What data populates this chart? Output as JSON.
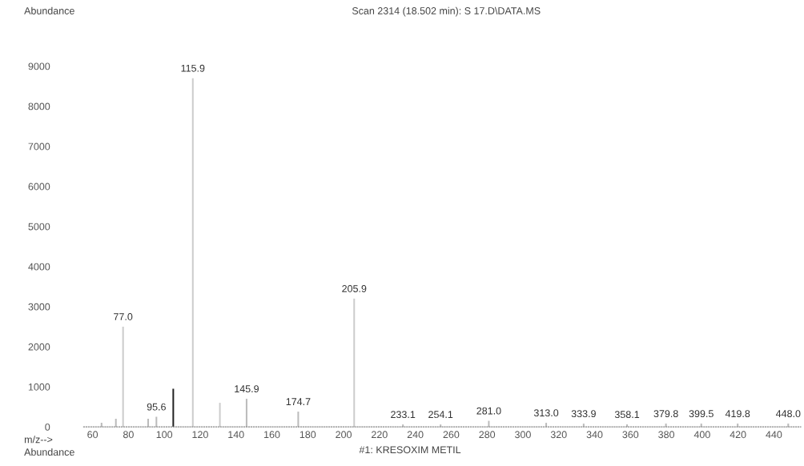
{
  "chart_data": {
    "type": "bar",
    "title": "Scan 2314 (18.502 min): S 17.D\\DATA.MS",
    "xlabel": "m/z-->",
    "ylabel": "Abundance",
    "x": [
      65.0,
      73.0,
      77.0,
      91.0,
      95.6,
      105.0,
      115.9,
      131.0,
      145.9,
      174.7,
      205.9,
      233.1,
      254.1,
      281.0,
      313.0,
      333.9,
      358.1,
      379.8,
      399.5,
      419.8,
      448.0
    ],
    "values": [
      100,
      200,
      2500,
      200,
      250,
      950,
      8700,
      600,
      700,
      380,
      3200,
      60,
      60,
      150,
      100,
      80,
      60,
      80,
      80,
      80,
      80
    ],
    "colors": [
      "#bbbbbb",
      "#bbbbbb",
      "#cccccc",
      "#bbbbbb",
      "#bbbbbb",
      "#222222",
      "#cccccc",
      "#cccccc",
      "#bbbbbb",
      "#bbbbbb",
      "#cccccc",
      "#bbbbbb",
      "#bbbbbb",
      "#bbbbbb",
      "#bbbbbb",
      "#bbbbbb",
      "#bbbbbb",
      "#bbbbbb",
      "#bbbbbb",
      "#bbbbbb",
      "#bbbbbb"
    ],
    "xlim": [
      55,
      455
    ],
    "xticks": [
      60,
      80,
      100,
      120,
      140,
      160,
      180,
      200,
      220,
      240,
      260,
      280,
      300,
      320,
      340,
      360,
      380,
      400,
      420,
      440
    ],
    "ylim": [
      0,
      9000
    ],
    "yticks": [
      0,
      1000,
      2000,
      3000,
      4000,
      5000,
      6000,
      7000,
      8000,
      9000
    ],
    "grid": false,
    "annotations": [
      {
        "text": "77.0",
        "x": 77.0,
        "y": 2500
      },
      {
        "text": "95.6",
        "x": 95.6,
        "y": 250
      },
      {
        "text": "115.9",
        "x": 115.9,
        "y": 8700
      },
      {
        "text": "145.9",
        "x": 145.9,
        "y": 700
      },
      {
        "text": "174.7",
        "x": 174.7,
        "y": 380
      },
      {
        "text": "205.9",
        "x": 205.9,
        "y": 3200
      },
      {
        "text": "233.1",
        "x": 233.1,
        "y": 60
      },
      {
        "text": "254.1",
        "x": 254.1,
        "y": 60
      },
      {
        "text": "281.0",
        "x": 281.0,
        "y": 150
      },
      {
        "text": "313.0",
        "x": 313.0,
        "y": 100
      },
      {
        "text": "333.9",
        "x": 333.9,
        "y": 80
      },
      {
        "text": "358.1",
        "x": 358.1,
        "y": 60
      },
      {
        "text": "379.8",
        "x": 379.8,
        "y": 80
      },
      {
        "text": "399.5",
        "x": 399.5,
        "y": 80
      },
      {
        "text": "419.8",
        "x": 419.8,
        "y": 80
      },
      {
        "text": "448.0",
        "x": 448.0,
        "y": 80
      },
      "Abundance",
      "#1: KRESOXIM METIL"
    ]
  }
}
